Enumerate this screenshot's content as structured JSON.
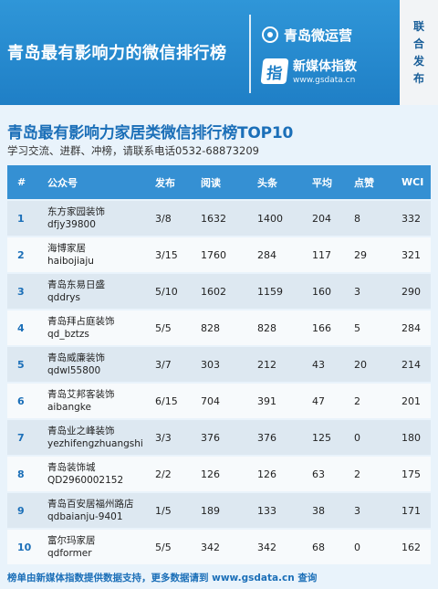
{
  "banner": {
    "title": "青岛最有影响力的微信排行榜",
    "brand1": "青岛微运营",
    "brand2": "新媒体指数",
    "brand2_url": "www.gsdata.cn",
    "brand2_icon_char": "指",
    "side": [
      "联",
      "合",
      "发",
      "布"
    ]
  },
  "subtitle": "青岛最有影响力家居类微信排行榜TOP10",
  "contact": "学习交流、进群、冲榜，请联系电话0532-68873209",
  "table": {
    "headers": [
      "#",
      "公众号",
      "发布",
      "阅读",
      "头条",
      "平均",
      "点赞",
      "WCI"
    ],
    "rows": [
      {
        "rank": "1",
        "name": "东方家园装饰",
        "id": "dfjy39800",
        "pub": "3/8",
        "read": "1632",
        "head": "1400",
        "avg": "204",
        "like": "8",
        "wci": "332"
      },
      {
        "rank": "2",
        "name": "海博家居",
        "id": "haibojiaju",
        "pub": "3/15",
        "read": "1760",
        "head": "284",
        "avg": "117",
        "like": "29",
        "wci": "321"
      },
      {
        "rank": "3",
        "name": "青岛东易日盛",
        "id": "qddrys",
        "pub": "5/10",
        "read": "1602",
        "head": "1159",
        "avg": "160",
        "like": "3",
        "wci": "290"
      },
      {
        "rank": "4",
        "name": "青岛拜占庭装饰",
        "id": "qd_bztzs",
        "pub": "5/5",
        "read": "828",
        "head": "828",
        "avg": "166",
        "like": "5",
        "wci": "284"
      },
      {
        "rank": "5",
        "name": "青岛威廉装饰",
        "id": "qdwl55800",
        "pub": "3/7",
        "read": "303",
        "head": "212",
        "avg": "43",
        "like": "20",
        "wci": "214"
      },
      {
        "rank": "6",
        "name": "青岛艾邦客装饰",
        "id": "aibangke",
        "pub": "6/15",
        "read": "704",
        "head": "391",
        "avg": "47",
        "like": "2",
        "wci": "201"
      },
      {
        "rank": "7",
        "name": "青岛业之峰装饰",
        "id": "yezhifengzhuangshi",
        "pub": "3/3",
        "read": "376",
        "head": "376",
        "avg": "125",
        "like": "0",
        "wci": "180"
      },
      {
        "rank": "8",
        "name": "青岛装饰城",
        "id": "QD2960002152",
        "pub": "2/2",
        "read": "126",
        "head": "126",
        "avg": "63",
        "like": "2",
        "wci": "175"
      },
      {
        "rank": "9",
        "name": "青岛百安居福州路店",
        "id": "qdbaianju-9401",
        "pub": "1/5",
        "read": "189",
        "head": "133",
        "avg": "38",
        "like": "3",
        "wci": "171"
      },
      {
        "rank": "10",
        "name": "富尔玛家居",
        "id": "qdformer",
        "pub": "5/5",
        "read": "342",
        "head": "342",
        "avg": "68",
        "like": "0",
        "wci": "162"
      }
    ]
  },
  "footer": "榜单由新媒体指数提供数据支持，更多数据请到 www.gsdata.cn 查询",
  "colors": {
    "banner": "#2388cf",
    "header_row": "#3590d3",
    "accent_text": "#1b6fb8"
  }
}
